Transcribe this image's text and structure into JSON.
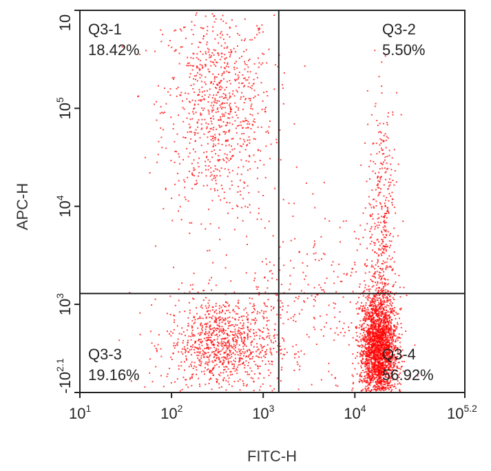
{
  "chart_data": {
    "type": "scatter",
    "title": "",
    "xlabel": "FITC-H",
    "ylabel": "APC-H",
    "x_scale": "log",
    "y_scale": "log",
    "xlim": [
      1,
      5.2
    ],
    "ylim": [
      2.1,
      6
    ],
    "x_ticks": [
      {
        "value": 1,
        "base": "10",
        "exp": "1"
      },
      {
        "value": 2,
        "base": "10",
        "exp": "2"
      },
      {
        "value": 3,
        "base": "10",
        "exp": "3"
      },
      {
        "value": 4,
        "base": "10",
        "exp": "4"
      },
      {
        "value": 5.2,
        "base": "10",
        "exp": "5.2"
      }
    ],
    "y_ticks": [
      {
        "value": 2.1,
        "base": "-10",
        "exp": "2.1"
      },
      {
        "value": 3,
        "base": "10",
        "exp": "3"
      },
      {
        "value": 4,
        "base": "10",
        "exp": "4"
      },
      {
        "value": 5,
        "base": "10",
        "exp": "5"
      },
      {
        "value": 6,
        "base": "10",
        "exp": ""
      }
    ],
    "gate_lines": {
      "x": 3.17,
      "y": 3.11
    },
    "quadrants": [
      {
        "id": "Q3-1",
        "name": "Q3-1",
        "percent": "18.42%",
        "position": "top-left"
      },
      {
        "id": "Q3-2",
        "name": "Q3-2",
        "percent": "5.50%",
        "position": "top-right"
      },
      {
        "id": "Q3-3",
        "name": "Q3-3",
        "percent": "19.16%",
        "position": "bottom-left"
      },
      {
        "id": "Q3-4",
        "name": "Q3-4",
        "percent": "56.92%",
        "position": "bottom-right"
      }
    ],
    "point_color": "#ff0000",
    "clusters": [
      {
        "name": "",
        "center_log_x": 2.5,
        "center_log_y": 5.0,
        "spread_x": 0.3,
        "spread_y": 0.55,
        "count": 900
      },
      {
        "name": "",
        "center_log_x": 2.55,
        "center_log_y": 2.6,
        "spread_x": 0.3,
        "spread_y": 0.25,
        "count": 1000
      },
      {
        "name": "",
        "center_log_x": 4.25,
        "center_log_y": 2.55,
        "spread_x": 0.1,
        "spread_y": 0.3,
        "count": 2400
      },
      {
        "name": "",
        "center_log_x": 4.3,
        "center_log_y": 3.9,
        "spread_x": 0.08,
        "spread_y": 0.6,
        "count": 350
      },
      {
        "name": "",
        "center_log_x": 3.5,
        "center_log_y": 3.0,
        "spread_x": 0.5,
        "spread_y": 0.5,
        "count": 300
      }
    ]
  }
}
